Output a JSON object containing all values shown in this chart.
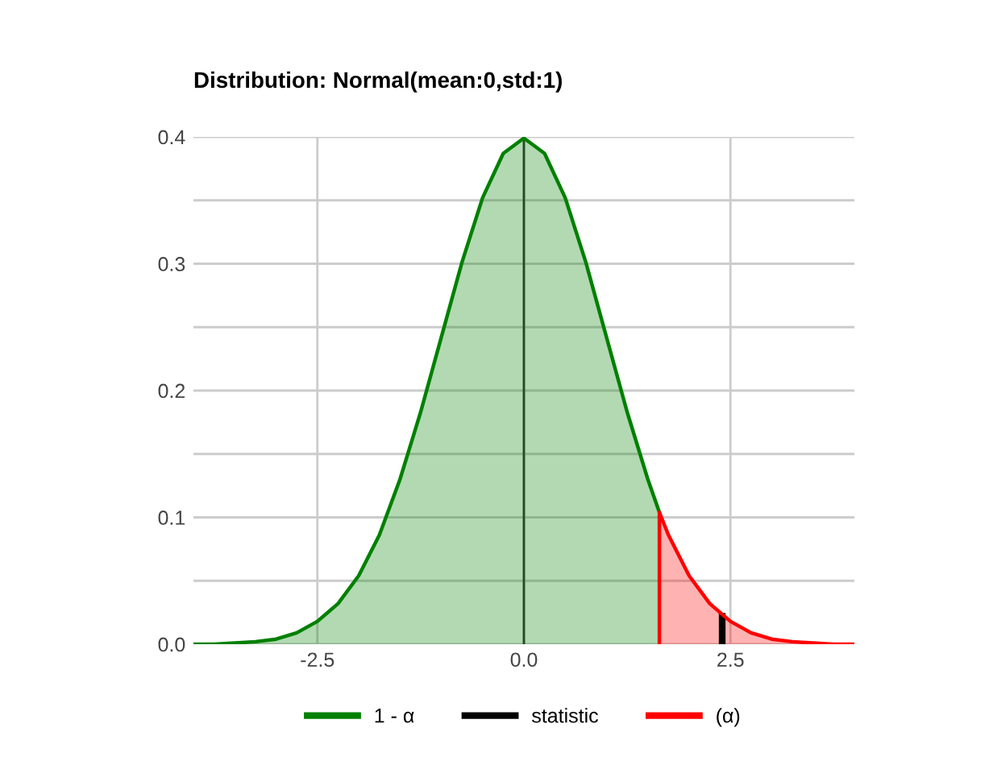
{
  "chart_data": {
    "type": "area",
    "title": "Distribution: Normal(mean:0,std:1)",
    "xlim": [
      -4,
      4
    ],
    "xticks": [
      -2.5,
      {
        "value": 0,
        "label": "0.0"
      },
      2.5
    ],
    "ylim": [
      0,
      0.4
    ],
    "yticks": [
      {
        "value": 0,
        "label": "0.0"
      },
      {
        "value": 0.05,
        "label": null
      },
      0.1,
      {
        "value": 0.15,
        "label": null
      },
      0.2,
      {
        "value": 0.25,
        "label": null
      },
      0.3,
      {
        "value": 0.35,
        "label": null
      },
      0.4
    ],
    "grid": true,
    "legend": "bottom",
    "ref_lines": [
      {
        "axis": "x",
        "value": 0,
        "color": "#333333"
      }
    ],
    "series": [
      {
        "name": "1 - α",
        "color": "#008000",
        "x": [
          -4,
          -3.75,
          -3.5,
          -3.25,
          -3,
          -2.75,
          -2.5,
          -2.25,
          -2,
          -1.75,
          -1.5,
          -1.25,
          -1,
          -0.75,
          -0.5,
          -0.25,
          0,
          0.25,
          0.5,
          0.75,
          1,
          1.25,
          1.5,
          1.64
        ],
        "values": [
          0.0,
          0.0,
          0.001,
          0.002,
          0.004,
          0.009,
          0.018,
          0.032,
          0.054,
          0.086,
          0.13,
          0.183,
          0.242,
          0.301,
          0.352,
          0.387,
          0.399,
          0.387,
          0.352,
          0.301,
          0.242,
          0.183,
          0.13,
          0.104
        ]
      },
      {
        "name": "statistic",
        "color": "#000000",
        "type": "line",
        "x": [
          2.4,
          2.4
        ],
        "values": [
          0,
          0.022
        ]
      },
      {
        "name": "(α)",
        "color": "#ff0000",
        "x": [
          1.64,
          1.64,
          1.75,
          2,
          2.25,
          2.5,
          2.75,
          3,
          3.25,
          3.5,
          3.75,
          4
        ],
        "values": [
          0,
          0.104,
          0.086,
          0.054,
          0.032,
          0.018,
          0.009,
          0.004,
          0.002,
          0.001,
          0.0,
          0.0
        ]
      }
    ]
  }
}
